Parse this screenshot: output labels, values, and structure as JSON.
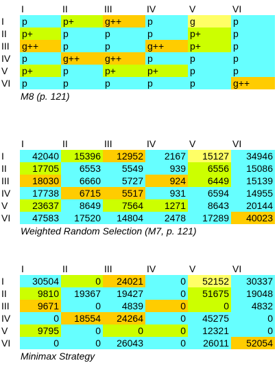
{
  "colors": {
    "c": "#66ffff",
    "l": "#ccff00",
    "o": "#ffcc00",
    "y": "#ffff66"
  },
  "tables": [
    {
      "kind": "text",
      "col_headers": [
        "I",
        "II",
        "III",
        "IV",
        "V",
        "VI"
      ],
      "row_headers": [
        "I",
        "II",
        "III",
        "IV",
        "V",
        "VI"
      ],
      "rows": [
        [
          "p",
          "p+",
          "g++",
          "p",
          "g",
          "p"
        ],
        [
          "p+",
          "p",
          "p",
          "p",
          "p+",
          "p"
        ],
        [
          "g++",
          "p",
          "p",
          "g++",
          "p+",
          "p"
        ],
        [
          "p",
          "g++",
          "g++",
          "p",
          "p",
          "p"
        ],
        [
          "p+",
          "p",
          "p+",
          "p+",
          "p",
          "p"
        ],
        [
          "p",
          "p",
          "p",
          "p",
          "p",
          "g++"
        ]
      ],
      "fills": [
        [
          "c",
          "l",
          "o",
          "c",
          "y",
          "c"
        ],
        [
          "l",
          "c",
          "c",
          "c",
          "l",
          "c"
        ],
        [
          "o",
          "c",
          "c",
          "o",
          "l",
          "c"
        ],
        [
          "c",
          "o",
          "o",
          "c",
          "c",
          "c"
        ],
        [
          "l",
          "c",
          "l",
          "l",
          "c",
          "c"
        ],
        [
          "c",
          "c",
          "c",
          "c",
          "c",
          "o"
        ]
      ],
      "caption": "M8 (p. 121)"
    },
    {
      "kind": "num",
      "col_headers": [
        "I",
        "II",
        "III",
        "IV",
        "V",
        "VI"
      ],
      "row_headers": [
        "I",
        "II",
        "III",
        "IV",
        "V",
        "VI"
      ],
      "rows": [
        [
          "42040",
          "15396",
          "12952",
          "2167",
          "15127",
          "34946"
        ],
        [
          "17705",
          "6553",
          "5549",
          "939",
          "6556",
          "15086"
        ],
        [
          "18030",
          "6660",
          "5727",
          "924",
          "6449",
          "15139"
        ],
        [
          "17738",
          "6715",
          "5517",
          "931",
          "6594",
          "14955"
        ],
        [
          "23637",
          "8649",
          "7564",
          "1271",
          "8643",
          "20144"
        ],
        [
          "47583",
          "17520",
          "14804",
          "2478",
          "17289",
          "40023"
        ]
      ],
      "fills": [
        [
          "c",
          "l",
          "o",
          "c",
          "y",
          "c"
        ],
        [
          "l",
          "c",
          "c",
          "c",
          "l",
          "c"
        ],
        [
          "o",
          "c",
          "c",
          "o",
          "l",
          "c"
        ],
        [
          "c",
          "o",
          "o",
          "c",
          "c",
          "c"
        ],
        [
          "l",
          "c",
          "l",
          "l",
          "c",
          "c"
        ],
        [
          "c",
          "c",
          "c",
          "c",
          "c",
          "o"
        ]
      ],
      "caption": "Weighted Random Selection (M7, p. 121)"
    },
    {
      "kind": "num",
      "col_headers": [
        "I",
        "II",
        "III",
        "IV",
        "V",
        "VI"
      ],
      "row_headers": [
        "I",
        "II",
        "III",
        "IV",
        "V",
        "VI"
      ],
      "rows": [
        [
          "30504",
          "0",
          "24021",
          "0",
          "52152",
          "30337"
        ],
        [
          "9810",
          "19367",
          "19427",
          "0",
          "51675",
          "19048"
        ],
        [
          "9671",
          "0",
          "4839",
          "0",
          "0",
          "4832"
        ],
        [
          "0",
          "18554",
          "24264",
          "0",
          "45275",
          "0"
        ],
        [
          "9795",
          "0",
          "0",
          "0",
          "12321",
          "0"
        ],
        [
          "0",
          "0",
          "26043",
          "0",
          "26011",
          "52054"
        ]
      ],
      "fills": [
        [
          "c",
          "l",
          "o",
          "c",
          "y",
          "c"
        ],
        [
          "l",
          "c",
          "c",
          "c",
          "l",
          "c"
        ],
        [
          "o",
          "c",
          "c",
          "o",
          "l",
          "c"
        ],
        [
          "c",
          "o",
          "o",
          "c",
          "c",
          "c"
        ],
        [
          "l",
          "c",
          "l",
          "l",
          "c",
          "c"
        ],
        [
          "c",
          "c",
          "c",
          "c",
          "c",
          "o"
        ]
      ],
      "caption": "Minimax Strategy"
    }
  ]
}
